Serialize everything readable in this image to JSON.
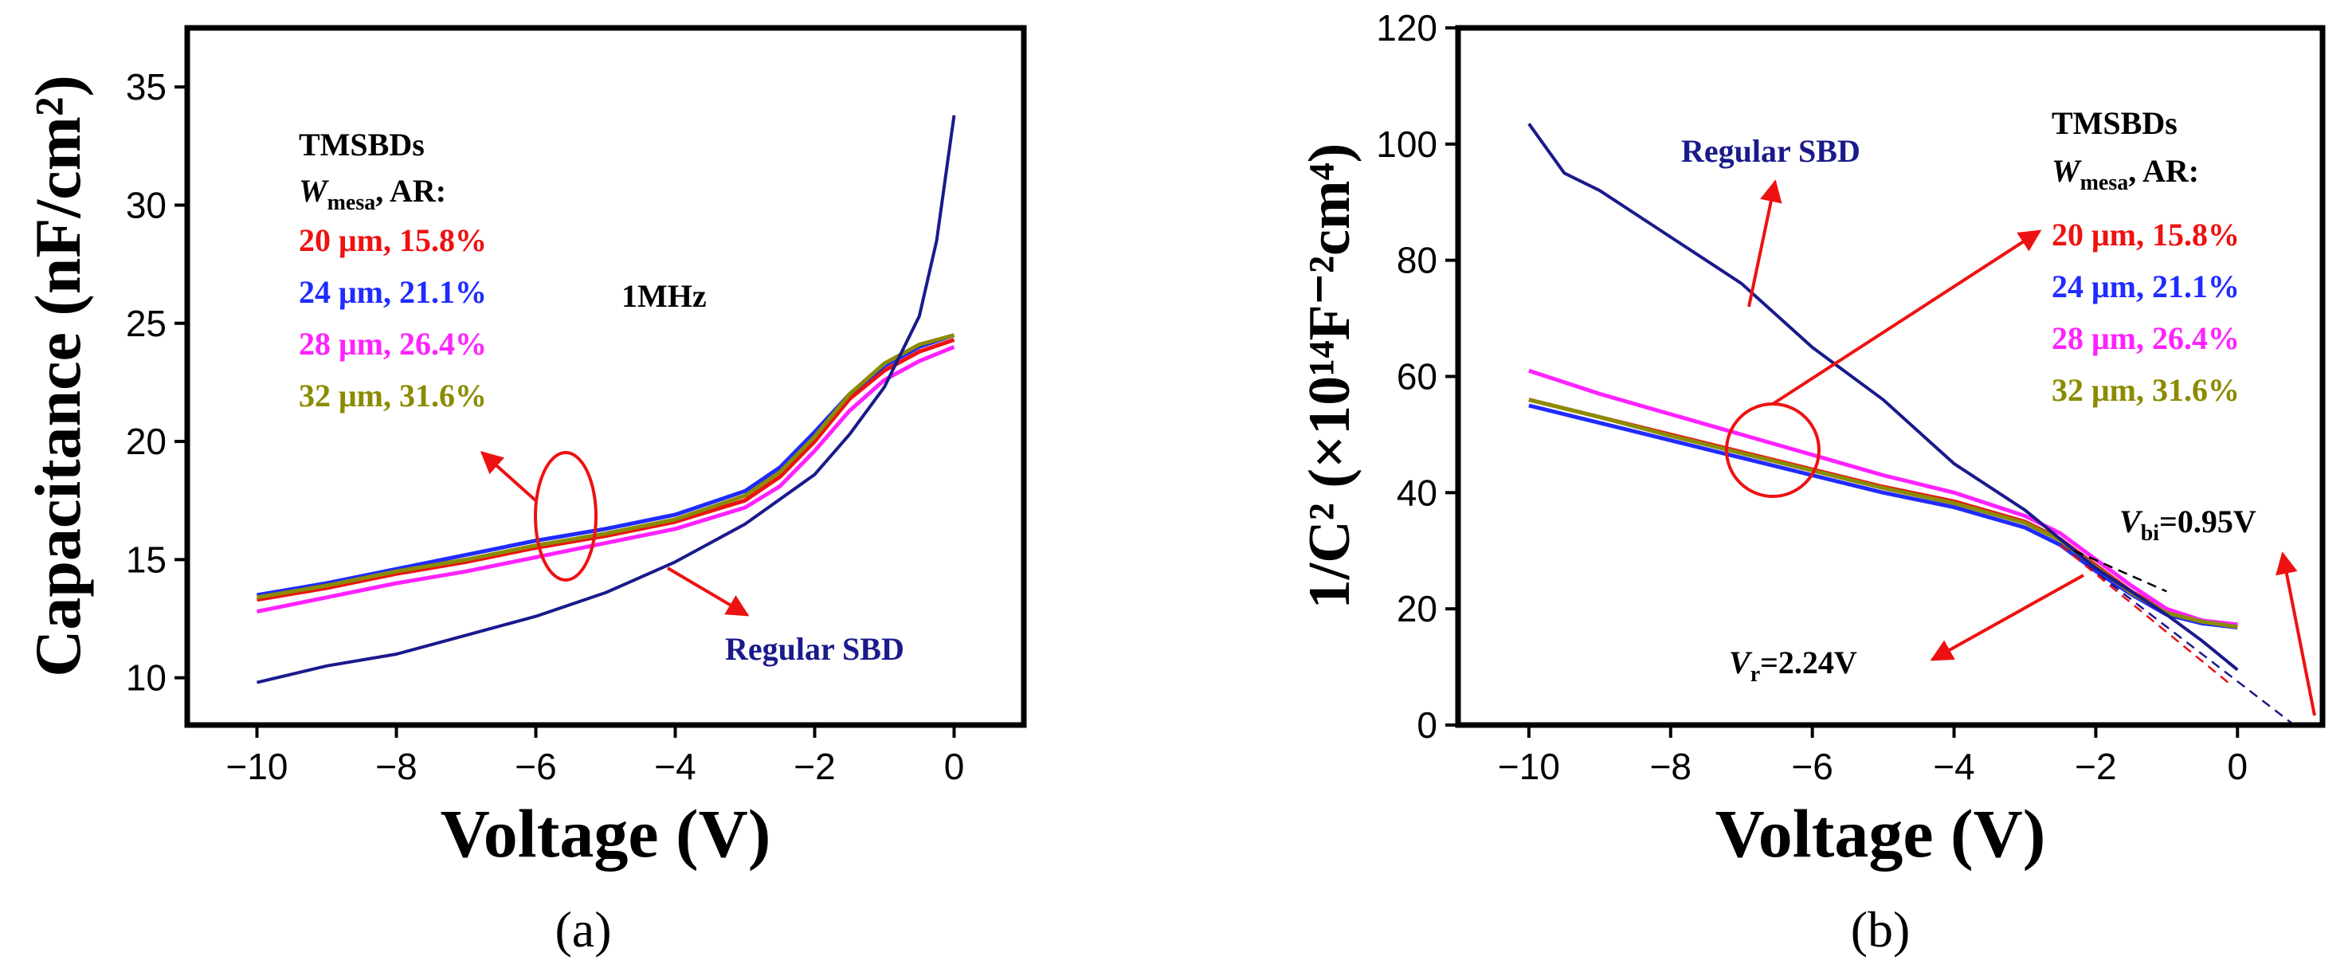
{
  "colors": {
    "regular": "#1a1a8c",
    "w20": "#ee1111",
    "w24": "#1f2bff",
    "w28": "#ff22ff",
    "w32": "#8b8b00",
    "arrow": "#ee1111"
  },
  "chart_data": [
    {
      "type": "line",
      "panel_label": "(a)",
      "xlabel": "Voltage (V)",
      "ylabel": "Capacitance (nF/cm²)",
      "xlim": [
        -11,
        1
      ],
      "ylim": [
        8,
        37.5
      ],
      "xticks": [
        -10,
        -8,
        -6,
        -4,
        -2,
        0
      ],
      "xtick_labels": [
        "−10",
        "−8",
        "−6",
        "−4",
        "−2",
        "0"
      ],
      "yticks": [
        10,
        15,
        20,
        25,
        30,
        35
      ],
      "ytick_labels": [
        "10",
        "15",
        "20",
        "25",
        "30",
        "35"
      ],
      "annotations": {
        "legend_title": "TMSBDs",
        "legend_sub_w": "W",
        "legend_sub_mesa": "mesa",
        "legend_sub_tail": ", AR:",
        "freq": "1MHz",
        "regular_label": "Regular SBD"
      },
      "series": [
        {
          "name": "20 μm, 15.8%",
          "key": "w20",
          "x": [
            -10,
            -9,
            -8,
            -7,
            -6,
            -5,
            -4,
            -3,
            -2.5,
            -2,
            -1.5,
            -1,
            -0.5,
            0
          ],
          "y": [
            13.3,
            13.8,
            14.4,
            14.9,
            15.5,
            16.0,
            16.6,
            17.5,
            18.5,
            20.0,
            21.8,
            23.0,
            23.8,
            24.3
          ]
        },
        {
          "name": "24 μm, 21.1%",
          "key": "w24",
          "x": [
            -10,
            -9,
            -8,
            -7,
            -6,
            -5,
            -4,
            -3,
            -2.5,
            -2,
            -1.5,
            -1,
            -0.5,
            0
          ],
          "y": [
            13.5,
            14.0,
            14.6,
            15.2,
            15.8,
            16.3,
            16.9,
            17.9,
            18.9,
            20.4,
            22.0,
            23.2,
            24.0,
            24.5
          ]
        },
        {
          "name": "28 μm, 26.4%",
          "key": "w28",
          "x": [
            -10,
            -9,
            -8,
            -7,
            -6,
            -5,
            -4,
            -3,
            -2.5,
            -2,
            -1.5,
            -1,
            -0.5,
            0
          ],
          "y": [
            12.8,
            13.4,
            14.0,
            14.5,
            15.1,
            15.7,
            16.3,
            17.2,
            18.1,
            19.6,
            21.3,
            22.6,
            23.4,
            24.0
          ]
        },
        {
          "name": "32 μm, 31.6%",
          "key": "w32",
          "x": [
            -10,
            -9,
            -8,
            -7,
            -6,
            -5,
            -4,
            -3,
            -2.5,
            -2,
            -1.5,
            -1,
            -0.5,
            0
          ],
          "y": [
            13.4,
            13.9,
            14.5,
            15.0,
            15.6,
            16.1,
            16.7,
            17.7,
            18.7,
            20.2,
            22.0,
            23.3,
            24.1,
            24.5
          ]
        },
        {
          "name": "Regular SBD",
          "key": "regular",
          "x": [
            -10,
            -9,
            -8,
            -7,
            -6,
            -5,
            -4,
            -3,
            -2,
            -1.5,
            -1,
            -0.5,
            -0.25,
            0
          ],
          "y": [
            9.8,
            10.5,
            11.0,
            11.8,
            12.6,
            13.6,
            14.9,
            16.5,
            18.6,
            20.3,
            22.3,
            25.3,
            28.5,
            33.8
          ]
        }
      ]
    },
    {
      "type": "line",
      "panel_label": "(b)",
      "xlabel": "Voltage (V)",
      "ylabel": "1/C² (×10¹⁴F⁻²cm⁴)",
      "xlim": [
        -11,
        1.2
      ],
      "ylim": [
        0,
        120
      ],
      "xticks": [
        -10,
        -8,
        -6,
        -4,
        -2,
        0
      ],
      "xtick_labels": [
        "−10",
        "−8",
        "−6",
        "−4",
        "−2",
        "0"
      ],
      "yticks": [
        0,
        20,
        40,
        60,
        80,
        100,
        120
      ],
      "ytick_labels": [
        "0",
        "20",
        "40",
        "60",
        "80",
        "100",
        "120"
      ],
      "annotations": {
        "legend_title": "TMSBDs",
        "legend_sub_w": "W",
        "legend_sub_mesa": "mesa",
        "legend_sub_tail": ", AR:",
        "regular_label": "Regular SBD",
        "vbi_v": "V",
        "vbi_sub": "bi",
        "vbi_val": "=0.95V",
        "vr_v": "V",
        "vr_sub": "r",
        "vr_val": "=2.24V"
      },
      "series": [
        {
          "name": "20 μm, 15.8%",
          "key": "w20",
          "x": [
            -10,
            -9,
            -8,
            -7,
            -6,
            -5,
            -4,
            -3,
            -2.5,
            -2,
            -1.5,
            -1,
            -0.5,
            0
          ],
          "y": [
            56.0,
            53.0,
            50.0,
            47.0,
            44.0,
            41.0,
            38.5,
            35.0,
            32.0,
            27.5,
            23.0,
            19.5,
            18.0,
            17.0
          ]
        },
        {
          "name": "24 μm, 21.1%",
          "key": "w24",
          "x": [
            -10,
            -9,
            -8,
            -7,
            -6,
            -5,
            -4,
            -3,
            -2.5,
            -2,
            -1.5,
            -1,
            -0.5,
            0
          ],
          "y": [
            55.0,
            52.0,
            49.0,
            46.0,
            43.0,
            40.0,
            37.5,
            34.0,
            31.0,
            26.5,
            22.5,
            19.0,
            17.5,
            16.8
          ]
        },
        {
          "name": "28 μm, 26.4%",
          "key": "w28",
          "x": [
            -10,
            -9,
            -8,
            -7,
            -6,
            -5,
            -4,
            -3,
            -2.5,
            -2,
            -1.5,
            -1,
            -0.5,
            0
          ],
          "y": [
            61.0,
            57.0,
            53.5,
            50.0,
            46.5,
            43.0,
            40.0,
            36.0,
            33.0,
            28.5,
            24.0,
            20.0,
            18.0,
            17.3
          ]
        },
        {
          "name": "32 μm, 31.6%",
          "key": "w32",
          "x": [
            -10,
            -9,
            -8,
            -7,
            -6,
            -5,
            -4,
            -3,
            -2.5,
            -2,
            -1.5,
            -1,
            -0.5,
            0
          ],
          "y": [
            56.0,
            53.0,
            49.8,
            46.8,
            43.8,
            40.8,
            38.2,
            34.8,
            31.8,
            27.2,
            22.8,
            19.3,
            17.8,
            16.9
          ]
        },
        {
          "name": "Regular SBD",
          "key": "regular",
          "x": [
            -10,
            -9.5,
            -9,
            -8,
            -7,
            -6,
            -5,
            -4,
            -3,
            -2,
            -1,
            -0.5,
            0
          ],
          "y": [
            103.5,
            95.0,
            92.0,
            84.0,
            76.0,
            65.0,
            56.0,
            45.0,
            37.0,
            27.0,
            19.0,
            14.5,
            9.5
          ]
        }
      ],
      "fit_lines": [
        {
          "key": "regular",
          "x": [
            -2.5,
            0.8
          ],
          "y": [
            31.0,
            0
          ]
        },
        {
          "key": "w20",
          "x": [
            -2.5,
            -0.1
          ],
          "y": [
            31.0,
            7.0
          ]
        },
        {
          "key": "dark",
          "x": [
            -2.3,
            -1.0
          ],
          "y": [
            30.0,
            23.0
          ]
        }
      ]
    }
  ]
}
